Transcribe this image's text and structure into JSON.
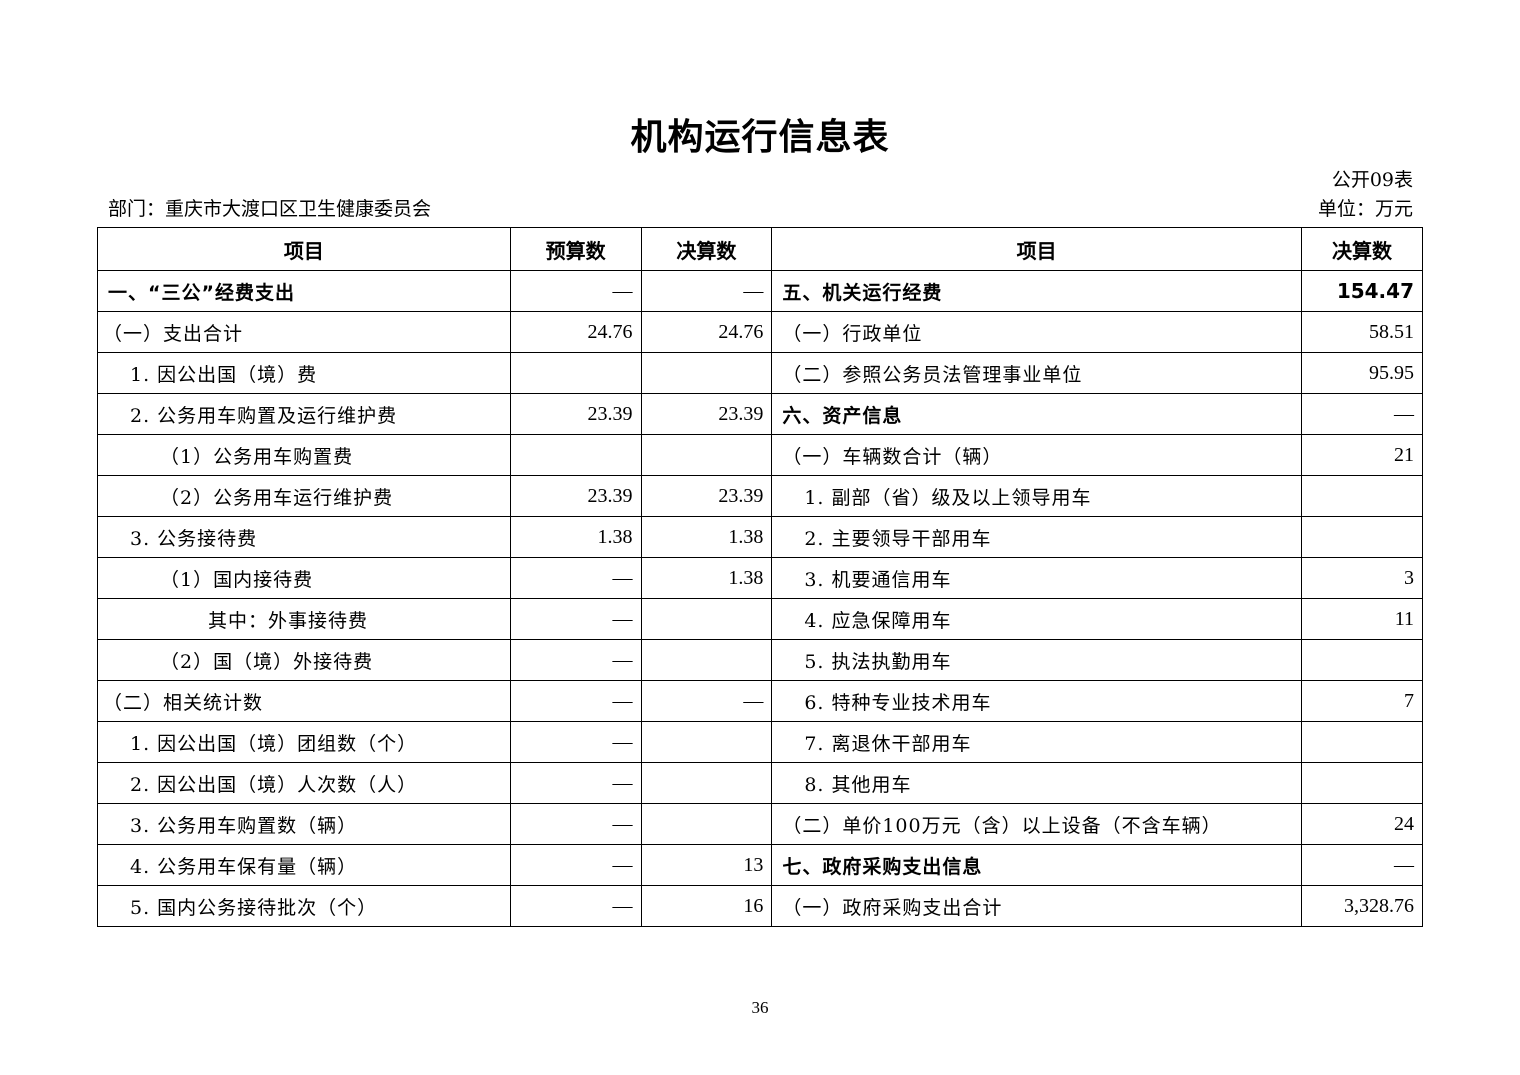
{
  "title": "机构运行信息表",
  "table_no": "公开09表",
  "department": "部门：重庆市大渡口区卫生健康委员会",
  "unit": "单位：万元",
  "headers": [
    "项目",
    "预算数",
    "决算数",
    "项目",
    "决算数"
  ],
  "rows": [
    {
      "left": "一、“三公”经费支出",
      "lindent": 0,
      "lbold": true,
      "budget": "—",
      "final": "—",
      "right": "五、机关运行经费",
      "rindent": 0,
      "rbold": true,
      "rvalue": "154.47",
      "rvbold": true
    },
    {
      "left": "（一）支出合计",
      "lindent": 0,
      "budget": "24.76",
      "final": "24.76",
      "right": "（一）行政单位",
      "rindent": 0,
      "rvalue": "58.51"
    },
    {
      "left": "1. 因公出国（境）费",
      "lindent": 1,
      "budget": "",
      "final": "",
      "right": "（二）参照公务员法管理事业单位",
      "rindent": 0,
      "rvalue": "95.95"
    },
    {
      "left": "2. 公务用车购置及运行维护费",
      "lindent": 1,
      "budget": "23.39",
      "final": "23.39",
      "right": "六、资产信息",
      "rindent": 0,
      "rbold": true,
      "rvalue": "—"
    },
    {
      "left": "（1）公务用车购置费",
      "lindent": 2,
      "budget": "",
      "final": "",
      "right": "（一）车辆数合计（辆）",
      "rindent": 0,
      "rvalue": "21"
    },
    {
      "left": "（2）公务用车运行维护费",
      "lindent": 2,
      "budget": "23.39",
      "final": "23.39",
      "right": "1. 副部（省）级及以上领导用车",
      "rindent": 1,
      "rvalue": ""
    },
    {
      "left": "3. 公务接待费",
      "lindent": 1,
      "budget": "1.38",
      "final": "1.38",
      "right": "2. 主要领导干部用车",
      "rindent": 1,
      "rvalue": ""
    },
    {
      "left": "（1）国内接待费",
      "lindent": 2,
      "budget": "—",
      "final": "1.38",
      "right": "3. 机要通信用车",
      "rindent": 1,
      "rvalue": "3"
    },
    {
      "left": "其中：外事接待费",
      "lindent": 3,
      "budget": "—",
      "final": "",
      "right": "4. 应急保障用车",
      "rindent": 1,
      "rvalue": "11"
    },
    {
      "left": "（2）国（境）外接待费",
      "lindent": 2,
      "budget": "—",
      "final": "",
      "right": "5. 执法执勤用车",
      "rindent": 1,
      "rvalue": ""
    },
    {
      "left": "（二）相关统计数",
      "lindent": 0,
      "budget": "—",
      "final": "—",
      "right": "6. 特种专业技术用车",
      "rindent": 1,
      "rvalue": "7"
    },
    {
      "left": "1. 因公出国（境）团组数（个）",
      "lindent": 1,
      "budget": "—",
      "final": "",
      "right": "7. 离退休干部用车",
      "rindent": 1,
      "rvalue": ""
    },
    {
      "left": "2. 因公出国（境）人次数（人）",
      "lindent": 1,
      "budget": "—",
      "final": "",
      "right": "8. 其他用车",
      "rindent": 1,
      "rvalue": ""
    },
    {
      "left": "3. 公务用车购置数（辆）",
      "lindent": 1,
      "budget": "—",
      "final": "",
      "right": "（二）单价100万元（含）以上设备（不含车辆）",
      "rindent": 0,
      "rvalue": "24"
    },
    {
      "left": "4. 公务用车保有量（辆）",
      "lindent": 1,
      "budget": "—",
      "final": "13",
      "right": "七、政府采购支出信息",
      "rindent": 0,
      "rbold": true,
      "rvalue": "—"
    },
    {
      "left": "5. 国内公务接待批次（个）",
      "lindent": 1,
      "budget": "—",
      "final": "16",
      "right": "（一）政府采购支出合计",
      "rindent": 0,
      "rvalue": "3,328.76"
    }
  ],
  "page_number": "36"
}
